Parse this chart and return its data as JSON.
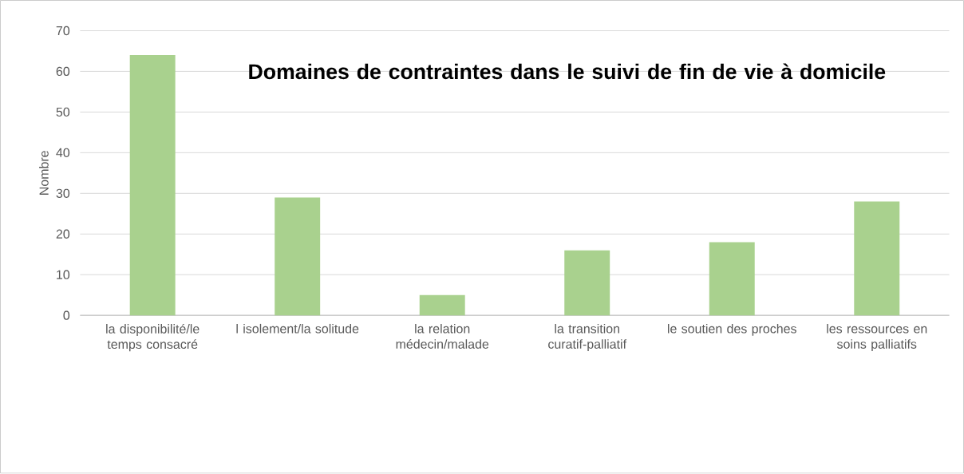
{
  "chart_data": {
    "type": "bar",
    "title": "Domaines de contraintes dans le suivi de fin  de vie à domicile",
    "ylabel": "Nombre",
    "categories": [
      "la disponibilité/le temps consacré",
      "l isolement/la solitude",
      "la relation médecin/malade",
      "la transition curatif-palliatif",
      "le soutien des proches",
      "les ressources en soins palliatifs"
    ],
    "values": [
      64,
      29,
      5,
      16,
      18,
      28
    ],
    "color": "#a9d18e",
    "ylim": [
      0,
      70
    ],
    "yticks": [
      0,
      10,
      20,
      30,
      40,
      50,
      60,
      70
    ],
    "grid": "y"
  }
}
